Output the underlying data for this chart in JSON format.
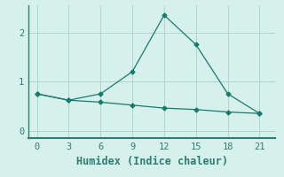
{
  "xlabel": "Humidex (Indice chaleur)",
  "x": [
    0,
    3,
    6,
    9,
    12,
    15,
    18,
    21
  ],
  "line1_y": [
    0.75,
    0.62,
    0.75,
    1.2,
    2.35,
    1.75,
    0.75,
    0.35
  ],
  "line2_y": [
    0.75,
    0.62,
    0.58,
    0.52,
    0.46,
    0.43,
    0.38,
    0.35
  ],
  "line_color": "#1a7a6e",
  "marker": "D",
  "marker_size": 2.5,
  "bg_color": "#d6f0eb",
  "grid_color": "#b0d5ce",
  "ylim": [
    -0.15,
    2.55
  ],
  "xlim": [
    -0.8,
    22.5
  ],
  "yticks": [
    0,
    1,
    2
  ],
  "xticks": [
    0,
    3,
    6,
    9,
    12,
    15,
    18,
    21
  ],
  "linewidth": 0.9,
  "xlabel_fontsize": 8.5,
  "tick_fontsize": 7.5,
  "spine_color": "#2e7d72",
  "bottom_spine_color": "#2e7d72"
}
